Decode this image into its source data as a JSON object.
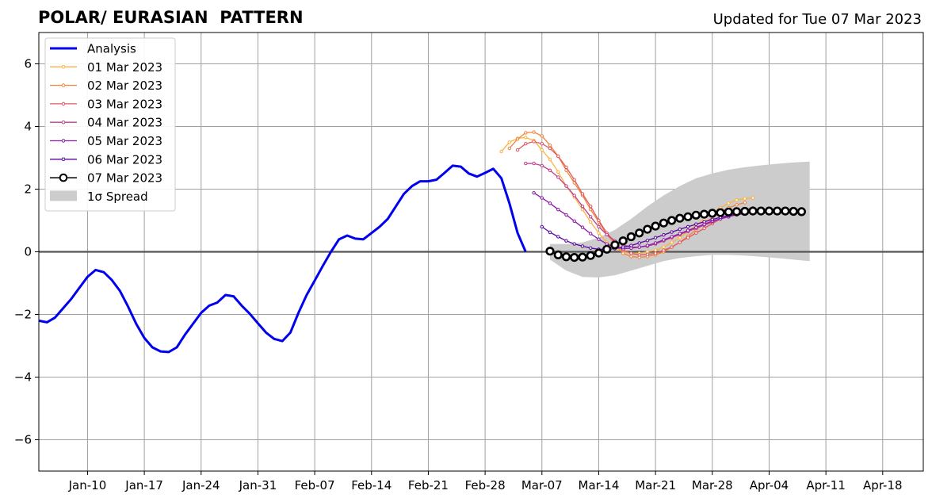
{
  "chart_data": {
    "type": "line",
    "title": "POLAR/ EURASIAN  PATTERN",
    "subtitle": "Updated for Tue 07 Mar 2023",
    "xlabel": "",
    "ylabel": "",
    "xlim": [
      "2023-01-04",
      "2023-04-23"
    ],
    "ylim": [
      -7,
      7
    ],
    "grid": true,
    "legend_position": "top-left",
    "x_ticks": [
      {
        "date": "2023-01-10",
        "label": "Jan-10"
      },
      {
        "date": "2023-01-17",
        "label": "Jan-17"
      },
      {
        "date": "2023-01-24",
        "label": "Jan-24"
      },
      {
        "date": "2023-01-31",
        "label": "Jan-31"
      },
      {
        "date": "2023-02-07",
        "label": "Feb-07"
      },
      {
        "date": "2023-02-14",
        "label": "Feb-14"
      },
      {
        "date": "2023-02-21",
        "label": "Feb-21"
      },
      {
        "date": "2023-02-28",
        "label": "Feb-28"
      },
      {
        "date": "2023-03-07",
        "label": "Mar-07"
      },
      {
        "date": "2023-03-14",
        "label": "Mar-14"
      },
      {
        "date": "2023-03-21",
        "label": "Mar-21"
      },
      {
        "date": "2023-03-28",
        "label": "Mar-28"
      },
      {
        "date": "2023-04-04",
        "label": "Apr-04"
      },
      {
        "date": "2023-04-11",
        "label": "Apr-11"
      },
      {
        "date": "2023-04-18",
        "label": "Apr-18"
      }
    ],
    "y_ticks": [
      {
        "value": -6,
        "label": "−6"
      },
      {
        "value": -4,
        "label": "−4"
      },
      {
        "value": -2,
        "label": "−2"
      },
      {
        "value": 0,
        "label": "0"
      },
      {
        "value": 2,
        "label": "2"
      },
      {
        "value": 4,
        "label": "4"
      },
      {
        "value": 6,
        "label": "6"
      }
    ],
    "analysis": {
      "name": "Analysis",
      "color": "#0000ee",
      "start_date": "2023-01-04",
      "values": [
        -2.2,
        -2.25,
        -2.1,
        -1.8,
        -1.5,
        -1.15,
        -0.8,
        -0.58,
        -0.65,
        -0.9,
        -1.25,
        -1.75,
        -2.3,
        -2.75,
        -3.05,
        -3.18,
        -3.2,
        -3.05,
        -2.65,
        -2.3,
        -1.95,
        -1.72,
        -1.62,
        -1.38,
        -1.42,
        -1.72,
        -1.98,
        -2.28,
        -2.58,
        -2.78,
        -2.85,
        -2.58,
        -1.95,
        -1.38,
        -0.92,
        -0.45,
        0.0,
        0.4,
        0.52,
        0.42,
        0.4,
        0.6,
        0.8,
        1.05,
        1.45,
        1.85,
        2.1,
        2.25,
        2.25,
        2.3,
        2.52,
        2.75,
        2.72,
        2.5,
        2.4,
        2.52,
        2.65,
        2.35,
        1.55,
        0.6,
        0.0
      ]
    },
    "spread": {
      "name": "1σ Spread",
      "color": "#cccccc",
      "x": [
        "2023-03-08",
        "2023-03-10",
        "2023-03-12",
        "2023-03-14",
        "2023-03-16",
        "2023-03-18",
        "2023-03-20",
        "2023-03-22",
        "2023-03-24",
        "2023-03-26",
        "2023-03-28",
        "2023-03-30",
        "2023-04-01",
        "2023-04-03",
        "2023-04-05",
        "2023-04-07",
        "2023-04-09"
      ],
      "upper": [
        0.25,
        0.25,
        0.3,
        0.45,
        0.7,
        1.05,
        1.45,
        1.8,
        2.1,
        2.35,
        2.5,
        2.62,
        2.7,
        2.76,
        2.81,
        2.85,
        2.88
      ],
      "lower": [
        -0.25,
        -0.6,
        -0.8,
        -0.82,
        -0.75,
        -0.6,
        -0.45,
        -0.3,
        -0.2,
        -0.14,
        -0.1,
        -0.1,
        -0.12,
        -0.16,
        -0.2,
        -0.25,
        -0.3
      ]
    },
    "series": [
      {
        "name": "01 Mar 2023",
        "color": "#fbb33f",
        "start_date": "2023-03-02",
        "values": [
          3.2,
          3.5,
          3.62,
          3.65,
          3.55,
          3.25,
          2.95,
          2.55,
          2.1,
          1.75,
          1.35,
          0.95,
          0.6,
          0.3,
          0.1,
          0.0,
          -0.05,
          -0.05,
          0.0,
          0.05,
          0.15,
          0.3,
          0.45,
          0.65,
          0.85,
          1.05,
          1.25,
          1.4,
          1.55,
          1.65,
          1.7,
          1.72
        ]
      },
      {
        "name": "02 Mar 2023",
        "color": "#f0843d",
        "start_date": "2023-03-03",
        "values": [
          3.3,
          3.6,
          3.8,
          3.82,
          3.7,
          3.4,
          3.05,
          2.6,
          2.2,
          1.8,
          1.35,
          0.95,
          0.55,
          0.25,
          -0.05,
          -0.15,
          -0.18,
          -0.15,
          -0.1,
          0.0,
          0.15,
          0.3,
          0.5,
          0.7,
          0.9,
          1.1,
          1.25,
          1.4,
          1.5,
          1.57
        ]
      },
      {
        "name": "03 Mar 2023",
        "color": "#e2585c",
        "start_date": "2023-03-04",
        "values": [
          3.25,
          3.45,
          3.52,
          3.45,
          3.3,
          3.05,
          2.7,
          2.3,
          1.85,
          1.45,
          1.0,
          0.6,
          0.3,
          0.05,
          -0.05,
          -0.1,
          -0.08,
          -0.05,
          0.05,
          0.15,
          0.3,
          0.45,
          0.6,
          0.75,
          0.9,
          1.05,
          1.18,
          1.28,
          1.35,
          1.4
        ]
      },
      {
        "name": "04 Mar 2023",
        "color": "#c03d8c",
        "start_date": "2023-03-05",
        "values": [
          2.82,
          2.82,
          2.75,
          2.6,
          2.38,
          2.1,
          1.8,
          1.45,
          1.12,
          0.8,
          0.55,
          0.35,
          0.22,
          0.15,
          0.15,
          0.18,
          0.25,
          0.35,
          0.45,
          0.55,
          0.65,
          0.75,
          0.85,
          0.95,
          1.05,
          1.12,
          1.2,
          1.25,
          1.3
        ]
      },
      {
        "name": "05 Mar 2023",
        "color": "#8e18a8",
        "start_date": "2023-03-06",
        "values": [
          1.88,
          1.72,
          1.55,
          1.35,
          1.18,
          0.98,
          0.78,
          0.58,
          0.4,
          0.25,
          0.15,
          0.1,
          0.12,
          0.15,
          0.2,
          0.28,
          0.38,
          0.48,
          0.58,
          0.68,
          0.78,
          0.88,
          0.98,
          1.05,
          1.12,
          1.18,
          1.22,
          1.25
        ]
      },
      {
        "name": "06 Mar 2023",
        "color": "#5a06a0",
        "start_date": "2023-03-07",
        "values": [
          0.8,
          0.62,
          0.48,
          0.35,
          0.25,
          0.18,
          0.12,
          0.08,
          0.08,
          0.1,
          0.15,
          0.2,
          0.28,
          0.36,
          0.45,
          0.54,
          0.63,
          0.72,
          0.8,
          0.88,
          0.96,
          1.03,
          1.1,
          1.16,
          1.21,
          1.25,
          1.28
        ]
      },
      {
        "name": "07 Mar 2023",
        "color": "#000000",
        "start_date": "2023-03-08",
        "values": [
          0.02,
          -0.1,
          -0.16,
          -0.18,
          -0.17,
          -0.12,
          -0.04,
          0.08,
          0.22,
          0.35,
          0.48,
          0.6,
          0.72,
          0.82,
          0.92,
          1.0,
          1.07,
          1.12,
          1.17,
          1.2,
          1.23,
          1.25,
          1.27,
          1.28,
          1.29,
          1.3,
          1.3,
          1.3,
          1.3,
          1.3,
          1.29,
          1.28
        ]
      }
    ],
    "legend": [
      {
        "label": "Analysis",
        "kind": "line",
        "color": "#0000ee"
      },
      {
        "label": "01 Mar 2023",
        "kind": "small-marker",
        "color": "#fbb33f"
      },
      {
        "label": "02 Mar 2023",
        "kind": "small-marker",
        "color": "#f0843d"
      },
      {
        "label": "03 Mar 2023",
        "kind": "small-marker",
        "color": "#e2585c"
      },
      {
        "label": "04 Mar 2023",
        "kind": "small-marker",
        "color": "#c03d8c"
      },
      {
        "label": "05 Mar 2023",
        "kind": "small-marker",
        "color": "#8e18a8"
      },
      {
        "label": "06 Mar 2023",
        "kind": "small-marker",
        "color": "#5a06a0"
      },
      {
        "label": "07 Mar 2023",
        "kind": "big-marker",
        "color": "#000000"
      },
      {
        "label": "1σ Spread",
        "kind": "patch",
        "color": "#cccccc"
      }
    ]
  }
}
